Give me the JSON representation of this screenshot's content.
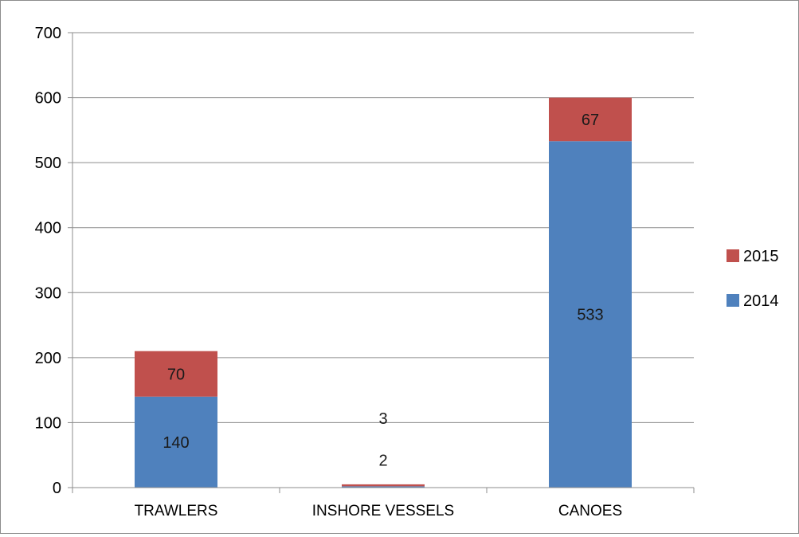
{
  "chart_data": {
    "type": "bar",
    "stacked": true,
    "categories": [
      "TRAWLERS",
      "INSHORE VESSELS",
      "CANOES"
    ],
    "series": [
      {
        "name": "2014",
        "values": [
          140,
          2,
          533
        ],
        "color": "#4f81bd"
      },
      {
        "name": "2015",
        "values": [
          70,
          3,
          67
        ],
        "color": "#c0504d"
      }
    ],
    "title": "",
    "xlabel": "",
    "ylabel": "",
    "ylim": [
      0,
      700
    ],
    "yticks": [
      0,
      100,
      200,
      300,
      400,
      500,
      600,
      700
    ],
    "grid": true,
    "legend_position": "right"
  }
}
